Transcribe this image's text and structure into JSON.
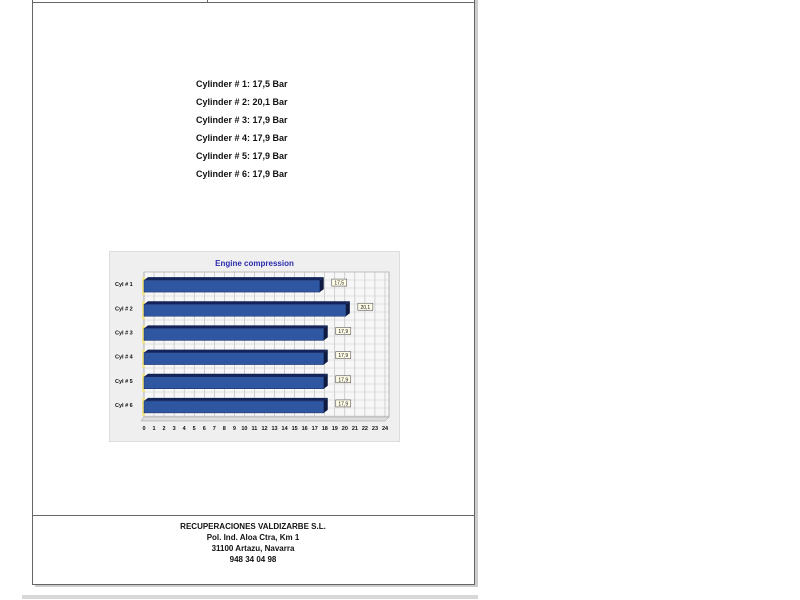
{
  "readings": [
    "Cylinder # 1: 17,5 Bar",
    "Cylinder # 2: 20,1 Bar",
    "Cylinder # 3: 17,9 Bar",
    "Cylinder # 4: 17,9 Bar",
    "Cylinder # 5: 17,9 Bar",
    "Cylinder # 6: 17,9 Bar"
  ],
  "chart_data": {
    "type": "bar",
    "orientation": "horizontal",
    "title": "Engine compression",
    "categories": [
      "Cyl # 1",
      "Cyl # 2",
      "Cyl # 3",
      "Cyl # 4",
      "Cyl # 5",
      "Cyl # 6"
    ],
    "values": [
      17.5,
      20.1,
      17.9,
      17.9,
      17.9,
      17.9
    ],
    "data_labels": [
      "17,5",
      "20,1",
      "17,9",
      "17,9",
      "17,9",
      "17,9"
    ],
    "xlim": [
      0,
      24
    ],
    "xticks": [
      "0",
      "1",
      "2",
      "3",
      "4",
      "5",
      "6",
      "7",
      "8",
      "9",
      "10",
      "11",
      "12",
      "13",
      "14",
      "15",
      "16",
      "17",
      "18",
      "19",
      "20",
      "21",
      "22",
      "23",
      "24"
    ],
    "grid": true,
    "bar_color": "#2f56a0"
  },
  "footer": {
    "company": "RECUPERACIONES VALDIZARBE S.L.",
    "address1": "Pol. Ind. Aloa Ctra, Km 1",
    "address2": "31100 Artazu, Navarra",
    "phone": "948 34 04 98"
  }
}
